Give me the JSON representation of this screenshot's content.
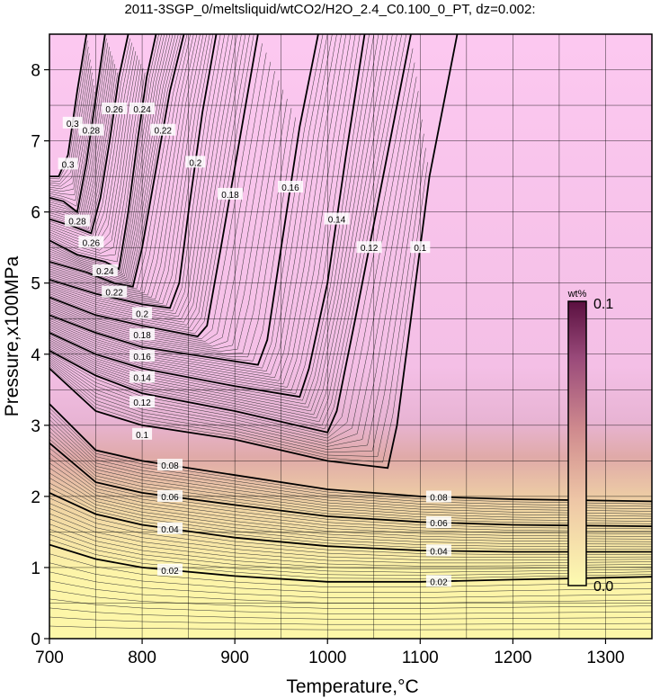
{
  "chart_data": {
    "type": "contour",
    "title": "2011-3SGP_0/meltsliquid/wtCO2/H2O_2.4_C0.100_0_PT, dz=0.002:",
    "xlabel": "Temperature,°C",
    "ylabel": "Pressure,x100MPa",
    "xlim": [
      700,
      1350
    ],
    "ylim": [
      0,
      8.5
    ],
    "xticks": [
      "700",
      "800",
      "900",
      "1000",
      "1100",
      "1200",
      "1300"
    ],
    "yticks": [
      "0",
      "1",
      "2",
      "3",
      "4",
      "5",
      "6",
      "7",
      "8"
    ],
    "grid": true,
    "colorbar": {
      "unit": "wt%",
      "min_label": "0.0",
      "max_label": "0.1",
      "min": 0.0,
      "max": 0.1,
      "colors": [
        "#fdfbb0",
        "#e8c0a0",
        "#c07080",
        "#8a3a6a",
        "#5a1040"
      ]
    },
    "fill_colors": {
      "saturated": "#fcc8f0",
      "low": "#fdf7a8"
    },
    "horizontal_contours": [
      {
        "label": "0.02",
        "T": [
          700,
          750,
          800,
          900,
          1000,
          1100,
          1200,
          1350
        ],
        "P": [
          1.32,
          1.12,
          1.0,
          0.88,
          0.8,
          0.8,
          0.83,
          0.87
        ]
      },
      {
        "label": "0.04",
        "T": [
          700,
          750,
          800,
          900,
          1000,
          1100,
          1200,
          1350
        ],
        "P": [
          2.05,
          1.75,
          1.6,
          1.42,
          1.3,
          1.24,
          1.22,
          1.22
        ]
      },
      {
        "label": "0.06",
        "T": [
          700,
          750,
          800,
          900,
          1000,
          1100,
          1200,
          1350
        ],
        "P": [
          2.75,
          2.2,
          2.05,
          1.88,
          1.72,
          1.64,
          1.6,
          1.58
        ]
      },
      {
        "label": "0.08",
        "T": [
          700,
          750,
          800,
          900,
          1000,
          1100,
          1200,
          1350
        ],
        "P": [
          3.3,
          2.65,
          2.5,
          2.3,
          2.1,
          2.0,
          1.96,
          1.93
        ]
      }
    ],
    "saturation_contours": [
      {
        "label": "0.1",
        "T": [
          700,
          750,
          800,
          900,
          1000,
          1065,
          1075,
          1090,
          1110,
          1140
        ],
        "P": [
          3.8,
          3.2,
          3.0,
          2.8,
          2.5,
          2.4,
          3.0,
          4.5,
          6.5,
          8.5
        ]
      },
      {
        "label": "0.12",
        "T": [
          700,
          750,
          800,
          900,
          1000,
          1010,
          1030,
          1060,
          1090
        ],
        "P": [
          4.05,
          3.7,
          3.45,
          3.2,
          2.9,
          3.2,
          4.5,
          6.5,
          8.5
        ]
      },
      {
        "label": "0.14",
        "T": [
          700,
          750,
          800,
          900,
          970,
          980,
          1000,
          1020,
          1040
        ],
        "P": [
          4.3,
          4.0,
          3.8,
          3.55,
          3.4,
          3.8,
          5.0,
          6.8,
          8.5
        ]
      },
      {
        "label": "0.16",
        "T": [
          700,
          750,
          800,
          900,
          925,
          935,
          950,
          970,
          990
        ],
        "P": [
          4.55,
          4.3,
          4.1,
          3.9,
          3.85,
          4.2,
          5.5,
          7.2,
          8.5
        ]
      },
      {
        "label": "0.18",
        "T": [
          700,
          750,
          800,
          860,
          870,
          885,
          905,
          925
        ],
        "P": [
          4.8,
          4.55,
          4.4,
          4.25,
          4.4,
          5.5,
          7.0,
          8.5
        ]
      },
      {
        "label": "0.2",
        "T": [
          700,
          750,
          800,
          830,
          840,
          850,
          865,
          880
        ],
        "P": [
          5.05,
          4.85,
          4.7,
          4.65,
          5.0,
          6.0,
          7.4,
          8.5
        ]
      },
      {
        "label": "0.22",
        "T": [
          700,
          740,
          770,
          790,
          800,
          815,
          830,
          845
        ],
        "P": [
          5.3,
          5.15,
          5.0,
          4.95,
          5.5,
          6.6,
          7.7,
          8.5
        ]
      },
      {
        "label": "0.24",
        "T": [
          700,
          730,
          760,
          775,
          785,
          795,
          805,
          815
        ],
        "P": [
          5.6,
          5.4,
          5.3,
          5.2,
          6.0,
          7.0,
          7.9,
          8.5
        ]
      },
      {
        "label": "0.26",
        "T": [
          700,
          725,
          745,
          755,
          765,
          775,
          785
        ],
        "P": [
          5.9,
          5.8,
          5.7,
          6.2,
          7.0,
          7.9,
          8.5
        ]
      },
      {
        "label": "0.28",
        "T": [
          700,
          715,
          730,
          740,
          750,
          760
        ],
        "P": [
          6.2,
          6.15,
          6.0,
          6.7,
          7.6,
          8.5
        ]
      },
      {
        "label": "0.3",
        "T": [
          700,
          710,
          720,
          730,
          740
        ],
        "P": [
          6.5,
          6.5,
          6.8,
          7.7,
          8.5
        ]
      }
    ]
  }
}
